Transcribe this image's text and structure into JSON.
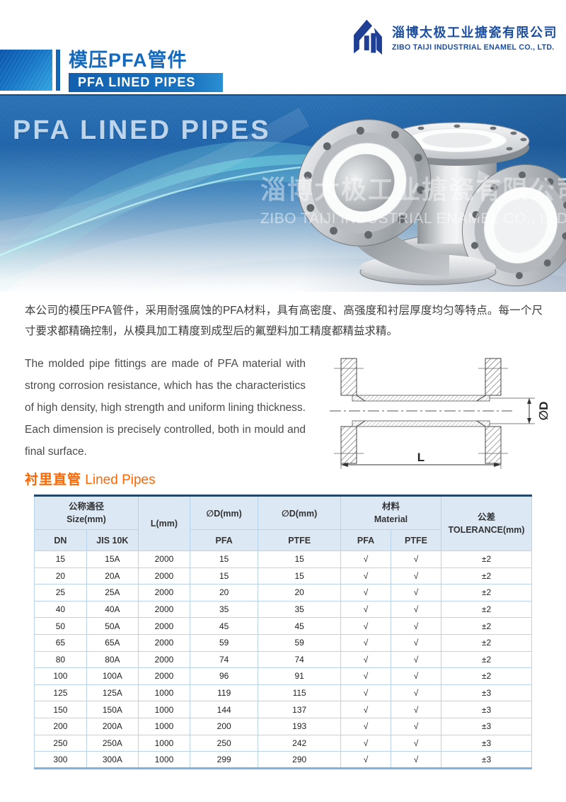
{
  "logo": {
    "company_cn": "淄博太极工业搪瓷有限公司",
    "company_en": "ZIBO TAIJI INDUSTRIAL ENAMEL CO., LTD."
  },
  "masthead": {
    "title_cn": "模压PFA管件",
    "title_en": "PFA LINED PIPES"
  },
  "banner": {
    "headline": "PFA LINED PIPES",
    "watermark_cn": "淄博太极工业搪瓷有限公司",
    "watermark_en": "ZIBO TAIJI INDUSTRIAL ENAMEL CO., LTD."
  },
  "intro": {
    "cn": "本公司的模压PFA管件，采用耐强腐蚀的PFA材料，具有高密度、高强度和衬层厚度均匀等特点。每一个尺寸要求都精确控制，从模具加工精度到成型后的氟塑料加工精度都精益求精。",
    "en": "The molded pipe fittings are made of PFA material with strong corrosion resistance, which has the characteristics of high density, high strength and uniform lining thickness. Each dimension is precisely controlled, both in mould and final surface."
  },
  "drawing": {
    "dim_d": "∅D",
    "dim_l": "L"
  },
  "section": {
    "title_cn": "衬里直管",
    "title_en": "Lined Pipes"
  },
  "table": {
    "group_size_cn": "公称通径",
    "group_size_en": "Size(mm)",
    "col_dn": "DN",
    "col_jis": "JIS 10K",
    "col_l": "L(mm)",
    "col_d1": "∅D(mm)",
    "col_d1_sub": "PFA",
    "col_d2": "∅D(mm)",
    "col_d2_sub": "PTFE",
    "group_mat_cn": "材料",
    "group_mat_en": "Material",
    "col_mat_pfa": "PFA",
    "col_mat_ptfe": "PTFE",
    "col_tol_cn": "公差",
    "col_tol_en": "TOLERANCE(mm)",
    "rows": [
      [
        "15",
        "15A",
        "2000",
        "15",
        "15",
        "√",
        "√",
        "±2"
      ],
      [
        "20",
        "20A",
        "2000",
        "15",
        "15",
        "√",
        "√",
        "±2"
      ],
      [
        "25",
        "25A",
        "2000",
        "20",
        "20",
        "√",
        "√",
        "±2"
      ],
      [
        "40",
        "40A",
        "2000",
        "35",
        "35",
        "√",
        "√",
        "±2"
      ],
      [
        "50",
        "50A",
        "2000",
        "45",
        "45",
        "√",
        "√",
        "±2"
      ],
      [
        "65",
        "65A",
        "2000",
        "59",
        "59",
        "√",
        "√",
        "±2"
      ],
      [
        "80",
        "80A",
        "2000",
        "74",
        "74",
        "√",
        "√",
        "±2"
      ],
      [
        "100",
        "100A",
        "2000",
        "96",
        "91",
        "√",
        "√",
        "±2"
      ],
      [
        "125",
        "125A",
        "1000",
        "119",
        "115",
        "√",
        "√",
        "±3"
      ],
      [
        "150",
        "150A",
        "1000",
        "144",
        "137",
        "√",
        "√",
        "±3"
      ],
      [
        "200",
        "200A",
        "1000",
        "200",
        "193",
        "√",
        "√",
        "±3"
      ],
      [
        "250",
        "250A",
        "1000",
        "250",
        "242",
        "√",
        "√",
        "±3"
      ],
      [
        "300",
        "300A",
        "1000",
        "299",
        "290",
        "√",
        "√",
        "±3"
      ]
    ]
  },
  "colors": {
    "accent_blue": "#1569bd",
    "accent_orange": "#ff6600",
    "logo_navy": "#1e3f94",
    "table_header_bg": "#dce9f5",
    "table_border": "#b9d3ea",
    "table_top_border": "#24466b",
    "table_bottom_border": "#7fb2e0"
  }
}
